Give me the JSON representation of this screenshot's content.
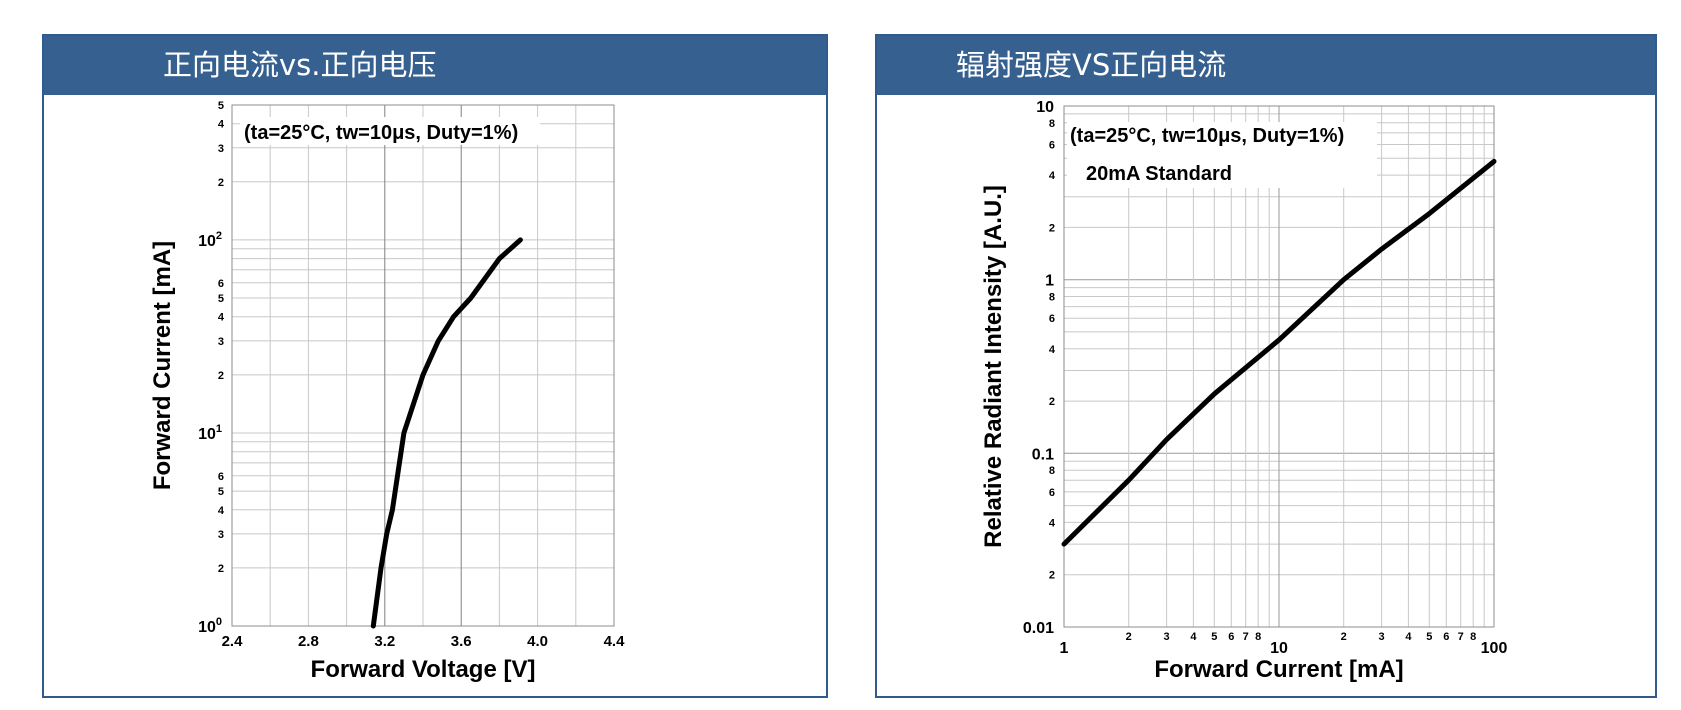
{
  "panels": [
    {
      "title": "正向电流vs.正向电压"
    },
    {
      "title": "辐射强度VS正向电流"
    }
  ],
  "chart_data": [
    {
      "type": "line",
      "title": "正向电流vs.正向电压",
      "xlabel": "Forward Voltage [V]",
      "ylabel": "Forward Current [mA]",
      "xscale": "linear",
      "yscale": "log",
      "xlim": [
        2.4,
        4.4
      ],
      "ylim": [
        1,
        500
      ],
      "grid": true,
      "x_ticks": [
        "2.4",
        "2.8",
        "3.2",
        "3.6",
        "4.0",
        "4.4"
      ],
      "y_minor_ticks": [
        "2",
        "3",
        "4",
        "5",
        "6",
        "2",
        "3",
        "4",
        "5",
        "6",
        "2",
        "3",
        "4",
        "5"
      ],
      "y_major_ticks": [
        {
          "base": "10",
          "exp": "0"
        },
        {
          "base": "10",
          "exp": "1"
        },
        {
          "base": "10",
          "exp": "2"
        }
      ],
      "annotations": [
        "(ta=25°C, tw=10μs, Duty=1%)"
      ],
      "series": [
        {
          "x": [
            3.14,
            3.18,
            3.21,
            3.24,
            3.3,
            3.4,
            3.48,
            3.56,
            3.65,
            3.8,
            3.91
          ],
          "y": [
            1,
            2,
            3,
            4,
            10,
            20,
            30,
            40,
            50,
            80,
            100
          ]
        }
      ]
    },
    {
      "type": "line",
      "title": "辐射强度VS正向电流",
      "xlabel": "Forward Current [mA]",
      "ylabel": "Relative Radiant Intensity [A.U.]",
      "xscale": "log",
      "yscale": "log",
      "xlim": [
        1,
        100
      ],
      "ylim": [
        0.01,
        10
      ],
      "grid": true,
      "x_major_ticks": [
        "1",
        "10",
        "100"
      ],
      "x_minor_ticks": [
        "2",
        "3",
        "4",
        "5",
        "6",
        "7",
        "8",
        "2",
        "3",
        "4",
        "5",
        "6",
        "7",
        "8"
      ],
      "y_major_ticks": [
        "0.01",
        "0.1",
        "1",
        "10"
      ],
      "y_minor_ticks": [
        "2",
        "4",
        "6",
        "8",
        "2",
        "4",
        "6",
        "8",
        "2",
        "4",
        "6",
        "8"
      ],
      "annotations": [
        "(ta=25°C, tw=10μs, Duty=1%)",
        "20mA Standard"
      ],
      "series": [
        {
          "x": [
            1,
            2,
            3,
            5,
            10,
            20,
            30,
            50,
            100
          ],
          "y": [
            0.03,
            0.07,
            0.12,
            0.22,
            0.45,
            1.0,
            1.5,
            2.4,
            4.8
          ]
        }
      ]
    }
  ]
}
